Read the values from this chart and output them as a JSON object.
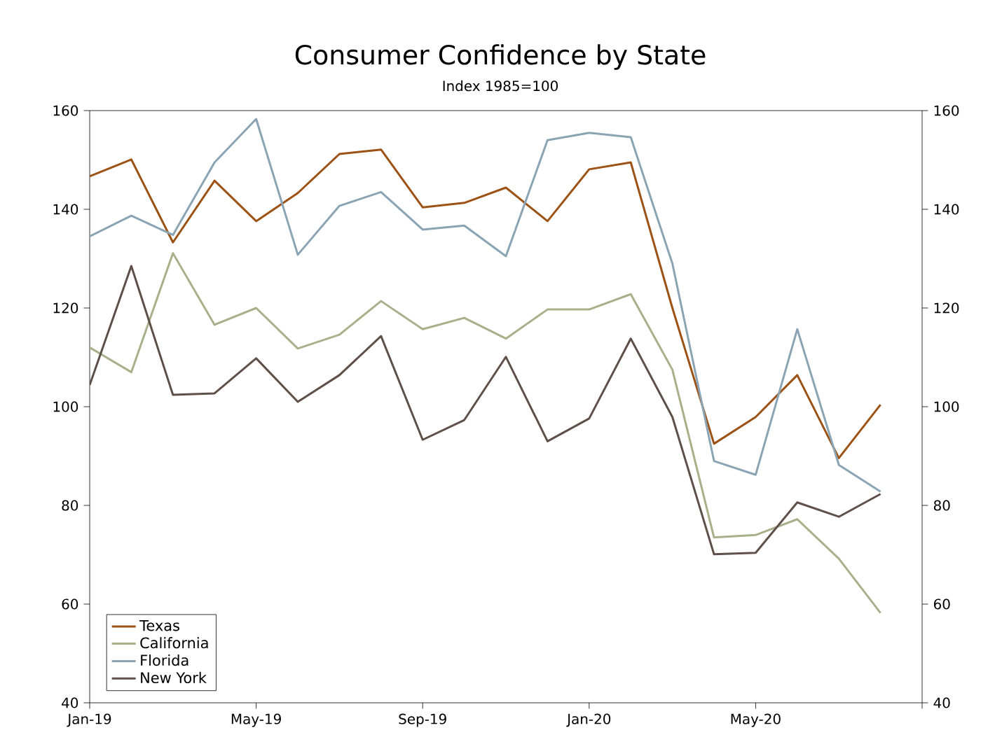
{
  "chart_data": {
    "type": "line",
    "title": "Consumer Confidence by State",
    "subtitle": "Index 1985=100",
    "x": [
      "2019-01",
      "2019-02",
      "2019-03",
      "2019-04",
      "2019-05",
      "2019-06",
      "2019-07",
      "2019-08",
      "2019-09",
      "2019-10",
      "2019-11",
      "2019-12",
      "2020-01",
      "2020-02",
      "2020-03",
      "2020-04",
      "2020-05",
      "2020-06",
      "2020-07",
      "2020-08"
    ],
    "series": [
      {
        "name": "Texas",
        "color": "#9c5215",
        "values": [
          146.7,
          150.1,
          133.3,
          145.8,
          137.6,
          143.3,
          151.2,
          152.1,
          140.4,
          141.3,
          144.4,
          137.6,
          148.1,
          149.5,
          120.0,
          92.5,
          97.9,
          106.4,
          89.6,
          100.4
        ]
      },
      {
        "name": "California",
        "color": "#a8b08a",
        "values": [
          112.0,
          107.0,
          131.1,
          116.6,
          120.0,
          111.8,
          114.6,
          121.4,
          115.7,
          118.0,
          113.8,
          119.7,
          119.7,
          122.8,
          107.5,
          73.5,
          74.0,
          77.2,
          69.2,
          58.2
        ]
      },
      {
        "name": "Florida",
        "color": "#8aa4b4",
        "values": [
          134.5,
          138.7,
          134.8,
          149.5,
          158.3,
          130.8,
          140.7,
          143.5,
          135.9,
          136.7,
          130.5,
          154.0,
          155.5,
          154.6,
          129.0,
          89.0,
          86.2,
          115.7,
          88.2,
          82.8
        ]
      },
      {
        "name": "New York",
        "color": "#5e5048",
        "values": [
          104.4,
          128.5,
          102.4,
          102.7,
          109.8,
          101.0,
          106.4,
          114.3,
          93.3,
          97.3,
          110.1,
          93.0,
          97.6,
          113.8,
          97.9,
          70.1,
          70.4,
          80.6,
          77.7,
          82.3
        ]
      }
    ],
    "xlim": [
      "2019-01",
      "2020-09"
    ],
    "xticks": [
      {
        "value": "2019-01",
        "label": "Jan-19"
      },
      {
        "value": "2019-05",
        "label": "May-19"
      },
      {
        "value": "2019-09",
        "label": "Sep-19"
      },
      {
        "value": "2020-01",
        "label": "Jan-20"
      },
      {
        "value": "2020-05",
        "label": "May-20"
      },
      {
        "value": "2020-09",
        "label": null
      }
    ],
    "ylim": [
      40,
      160
    ],
    "yticks": [
      40,
      60,
      80,
      100,
      120,
      140,
      160
    ],
    "y2lim": [
      40,
      160
    ],
    "y2ticks": [
      40,
      60,
      80,
      100,
      120,
      140,
      160
    ],
    "grid": false,
    "legend": "bottom left",
    "marker": "none",
    "line_style": "solid"
  }
}
